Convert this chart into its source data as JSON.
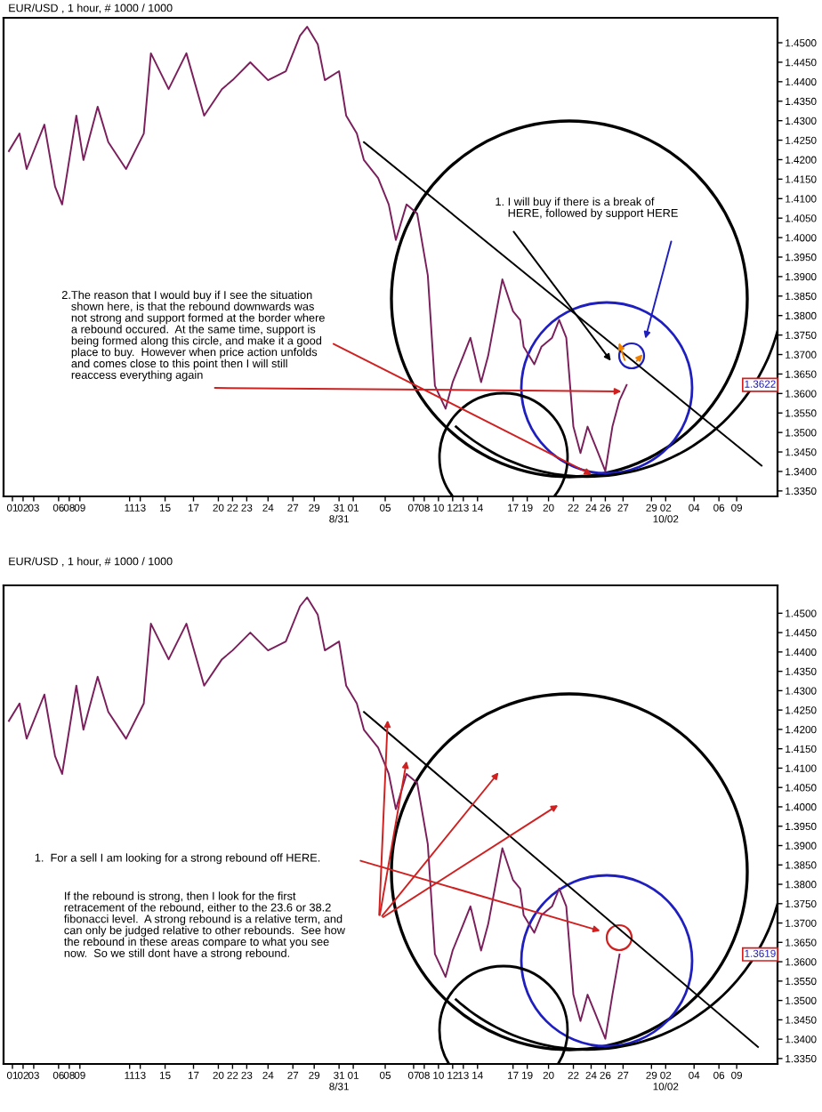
{
  "chart_data": [
    {
      "type": "line",
      "title": "EUR/USD , 1 hour, # 1000 / 1000",
      "ylim": [
        1.3336,
        1.4564
      ],
      "categories": [
        null,
        null,
        "01",
        null,
        null,
        "02",
        null,
        null,
        "03",
        null,
        null,
        null,
        null,
        null,
        null,
        "06",
        null,
        null,
        "08",
        null,
        null,
        "09",
        null,
        null,
        null,
        null,
        null,
        null,
        null,
        null,
        null,
        null,
        null,
        null,
        null,
        "11",
        null,
        null,
        "13",
        null,
        null,
        null,
        null,
        null,
        null,
        "15",
        null,
        null,
        null,
        null,
        null,
        null,
        null,
        "17",
        null,
        null,
        null,
        null,
        null,
        null,
        "20",
        null,
        null,
        null,
        "22",
        null,
        null,
        null,
        "23",
        null,
        null,
        null,
        null,
        null,
        "24",
        null,
        null,
        null,
        null,
        null,
        null,
        "27",
        null,
        null,
        null,
        null,
        null,
        "29",
        null,
        null,
        null,
        null,
        null,
        null,
        "31\n8/31",
        null,
        null,
        null,
        "01",
        null,
        null,
        null,
        null,
        null,
        null,
        null,
        null,
        "05",
        null,
        null,
        null,
        null,
        null,
        null,
        null,
        "07",
        null,
        null,
        "08",
        null,
        null,
        null,
        "10",
        null,
        null,
        null,
        "12",
        null,
        null,
        "13",
        null,
        null,
        null,
        "14",
        null,
        null,
        null,
        null,
        null,
        null,
        null,
        null,
        null,
        "17",
        null,
        null,
        null,
        "19",
        null,
        null,
        null,
        null,
        null,
        "20",
        null,
        null,
        null,
        null,
        null,
        null,
        "22",
        null,
        null,
        null,
        null,
        "24",
        null,
        null,
        null,
        "26",
        null,
        null,
        null,
        null,
        "27",
        null,
        null,
        null,
        null,
        null,
        null,
        null,
        "29",
        null,
        null,
        null,
        "02\n10/02",
        null,
        null,
        null,
        null,
        null,
        null,
        null,
        "04",
        null,
        null,
        null,
        null,
        null,
        null,
        "06",
        null,
        null,
        null,
        null,
        "09",
        null,
        null,
        null,
        null,
        null,
        null,
        null,
        null,
        null,
        null,
        null
      ],
      "yticks": [
        {
          "value": 1.335,
          "label": "1.3350"
        },
        {
          "value": 1.34,
          "label": "1.3400"
        },
        {
          "value": 1.345,
          "label": "1.3450"
        },
        {
          "value": 1.35,
          "label": "1.3500"
        },
        {
          "value": 1.355,
          "label": "1.3550"
        },
        {
          "value": 1.36,
          "label": "1.3600"
        },
        {
          "value": 1.365,
          "label": "1.3650"
        },
        {
          "value": 1.37,
          "label": "1.3700"
        },
        {
          "value": 1.375,
          "label": "1.3750"
        },
        {
          "value": 1.38,
          "label": "1.3800"
        },
        {
          "value": 1.385,
          "label": "1.3850"
        },
        {
          "value": 1.39,
          "label": "1.3900"
        },
        {
          "value": 1.395,
          "label": "1.3950"
        },
        {
          "value": 1.4,
          "label": "1.4000"
        },
        {
          "value": 1.405,
          "label": "1.4050"
        },
        {
          "value": 1.41,
          "label": "1.4100"
        },
        {
          "value": 1.415,
          "label": "1.4150"
        },
        {
          "value": 1.42,
          "label": "1.4200"
        },
        {
          "value": 1.425,
          "label": "1.4250"
        },
        {
          "value": 1.43,
          "label": "1.4300"
        },
        {
          "value": 1.435,
          "label": "1.4350"
        },
        {
          "value": 1.44,
          "label": "1.4400"
        },
        {
          "value": 1.445,
          "label": "1.4450"
        },
        {
          "value": 1.45,
          "label": "1.4500"
        }
      ],
      "series": [
        {
          "color": "#7a1f5c",
          "values": [
            null,
            1.4222,
            null,
            null,
            1.4267,
            null,
            1.4176,
            null,
            null,
            null,
            null,
            1.429,
            null,
            null,
            1.4131,
            null,
            1.4085,
            null,
            null,
            null,
            1.4313,
            null,
            1.4199,
            null,
            null,
            null,
            1.4336,
            null,
            null,
            1.4245,
            null,
            null,
            null,
            null,
            1.4176,
            null,
            null,
            null,
            null,
            1.4267,
            null,
            1.4473,
            null,
            null,
            null,
            null,
            1.4381,
            null,
            null,
            null,
            null,
            1.4473,
            null,
            null,
            null,
            null,
            1.4313,
            null,
            null,
            null,
            null,
            1.4381,
            null,
            null,
            1.4404,
            null,
            null,
            null,
            null,
            1.445,
            null,
            null,
            null,
            null,
            1.4404,
            null,
            null,
            null,
            null,
            1.4427,
            null,
            null,
            null,
            1.4518,
            null,
            1.4541,
            null,
            null,
            1.4496,
            null,
            1.4404,
            null,
            null,
            null,
            1.4427,
            null,
            1.4313,
            null,
            null,
            1.4267,
            null,
            1.4199,
            null,
            null,
            null,
            1.4153,
            null,
            null,
            1.4085,
            null,
            1.3994,
            null,
            null,
            1.4085,
            null,
            null,
            1.4062,
            null,
            null,
            1.3903,
            null,
            1.362,
            null,
            null,
            1.3561,
            null,
            1.3629,
            null,
            null,
            1.3697,
            null,
            1.3743,
            null,
            null,
            1.3629,
            null,
            1.3697,
            null,
            null,
            null,
            1.3893,
            null,
            null,
            1.3811,
            null,
            1.3789,
            1.372,
            null,
            null,
            1.3675,
            null,
            1.372,
            null,
            null,
            1.3743,
            null,
            1.3789,
            null,
            1.3743,
            null,
            1.3515,
            null,
            1.3447,
            null,
            1.3515,
            null,
            1.347,
            null,
            null,
            1.3401,
            null,
            1.3515,
            null,
            1.3583,
            null,
            1.3622,
            null,
            null,
            null,
            null,
            null,
            null,
            null,
            null,
            null,
            null,
            null,
            null,
            null,
            null,
            null,
            null,
            null,
            null,
            null,
            null,
            null,
            null,
            null,
            null,
            null,
            null,
            null,
            null,
            null,
            null,
            null,
            null,
            null,
            null,
            null,
            null,
            null,
            null,
            null,
            null,
            null,
            null
          ]
        },
        {
          "color": "#000000",
          "values": [
            null,
            null,
            null,
            null,
            null,
            null,
            null,
            null,
            null,
            null,
            null,
            null,
            null,
            null,
            null,
            null,
            null,
            null,
            null,
            null,
            null,
            null,
            null,
            null,
            null,
            null,
            null,
            null,
            null,
            null,
            null,
            null,
            null,
            null,
            null,
            null,
            null,
            null,
            null,
            null,
            null,
            null,
            null,
            null,
            null,
            null,
            null,
            null,
            null,
            null,
            null,
            null,
            null,
            null,
            null,
            null,
            null,
            null,
            null,
            null,
            null,
            null,
            null,
            null,
            null,
            null,
            null,
            null,
            null,
            null,
            null,
            null,
            null,
            null,
            null,
            null,
            null,
            null,
            null,
            null,
            null,
            null,
            null,
            null,
            null,
            null,
            null,
            null,
            null,
            null,
            null,
            null,
            null,
            null,
            null,
            null,
            null,
            null,
            null,
            null,
            null,
            1.4245,
            null,
            null,
            null,
            null,
            null,
            null,
            null,
            null,
            null,
            null,
            null,
            null,
            null,
            null,
            null,
            null,
            null,
            null,
            null,
            null,
            null,
            null,
            null,
            null,
            null,
            null,
            null,
            null,
            null,
            null,
            null,
            null,
            null,
            null,
            null,
            null,
            null,
            null,
            null,
            null,
            null,
            null,
            null,
            null,
            null,
            null,
            null,
            null,
            null,
            null,
            null,
            null,
            null,
            null,
            null,
            null,
            null,
            null,
            null,
            null,
            null,
            null,
            null,
            null,
            null,
            null,
            null,
            null,
            null,
            null,
            null,
            null,
            null,
            null,
            null,
            null,
            null,
            null,
            null,
            null,
            null,
            null,
            null,
            null,
            null,
            null,
            null,
            null,
            null,
            null,
            null,
            null,
            null,
            null,
            null,
            null,
            null,
            null,
            null,
            null,
            null,
            null,
            null,
            null,
            null,
            null,
            null,
            null,
            null,
            null,
            null,
            1.3415,
            null,
            null,
            null,
            null
          ]
        }
      ],
      "annotations": [
        "1. I will buy if there is a break of\n    HERE, followed by support HERE",
        "2.The reason that I would buy if I see the situation\n   shown here, is that the rebound downwards was\n   not strong and support formed at the border where\n   a rebound occured.  At the same time, support is\n   being formed along this circle, and make it a good\n   place to buy.  However when price action unfolds\n   and comes close to this point then I will still\n   reaccess everything again",
        "1.3622"
      ]
    },
    {
      "type": "line",
      "title": "EUR/USD , 1 hour, # 1000 / 1000",
      "ylim": [
        1.3336,
        1.4572
      ],
      "categories": [
        null,
        null,
        "01",
        null,
        null,
        "02",
        null,
        null,
        "03",
        null,
        null,
        null,
        null,
        null,
        null,
        "06",
        null,
        null,
        "08",
        null,
        null,
        "09",
        null,
        null,
        null,
        null,
        null,
        null,
        null,
        null,
        null,
        null,
        null,
        null,
        null,
        "11",
        null,
        null,
        "13",
        null,
        null,
        null,
        null,
        null,
        null,
        "15",
        null,
        null,
        null,
        null,
        null,
        null,
        null,
        "17",
        null,
        null,
        null,
        null,
        null,
        null,
        "20",
        null,
        null,
        null,
        "22",
        null,
        null,
        null,
        "23",
        null,
        null,
        null,
        null,
        null,
        "24",
        null,
        null,
        null,
        null,
        null,
        null,
        "27",
        null,
        null,
        null,
        null,
        null,
        "29",
        null,
        null,
        null,
        null,
        null,
        null,
        "31\n8/31",
        null,
        null,
        null,
        "01",
        null,
        null,
        null,
        null,
        null,
        null,
        null,
        null,
        "05",
        null,
        null,
        null,
        null,
        null,
        null,
        null,
        "07",
        null,
        null,
        "08",
        null,
        null,
        null,
        "10",
        null,
        null,
        null,
        "12",
        null,
        null,
        "13",
        null,
        null,
        null,
        "14",
        null,
        null,
        null,
        null,
        null,
        null,
        null,
        null,
        null,
        "17",
        null,
        null,
        null,
        "19",
        null,
        null,
        null,
        null,
        null,
        "20",
        null,
        null,
        null,
        null,
        null,
        null,
        "22",
        null,
        null,
        null,
        null,
        "24",
        null,
        null,
        null,
        "26",
        null,
        null,
        null,
        null,
        "27",
        null,
        null,
        null,
        null,
        null,
        null,
        null,
        "29",
        null,
        null,
        null,
        "02\n10/02",
        null,
        null,
        null,
        null,
        null,
        null,
        null,
        "04",
        null,
        null,
        null,
        null,
        null,
        null,
        "06",
        null,
        null,
        null,
        null,
        "09",
        null,
        null,
        null,
        null,
        null,
        null,
        null,
        null,
        null,
        null,
        null
      ],
      "yticks": [
        {
          "value": 1.335,
          "label": "1.3350"
        },
        {
          "value": 1.34,
          "label": "1.3400"
        },
        {
          "value": 1.345,
          "label": "1.3450"
        },
        {
          "value": 1.35,
          "label": "1.3500"
        },
        {
          "value": 1.355,
          "label": "1.3550"
        },
        {
          "value": 1.36,
          "label": "1.3600"
        },
        {
          "value": 1.365,
          "label": "1.3650"
        },
        {
          "value": 1.37,
          "label": "1.3700"
        },
        {
          "value": 1.375,
          "label": "1.3750"
        },
        {
          "value": 1.38,
          "label": "1.3800"
        },
        {
          "value": 1.385,
          "label": "1.3850"
        },
        {
          "value": 1.39,
          "label": "1.3900"
        },
        {
          "value": 1.395,
          "label": "1.3950"
        },
        {
          "value": 1.4,
          "label": "1.4000"
        },
        {
          "value": 1.405,
          "label": "1.4050"
        },
        {
          "value": 1.41,
          "label": "1.4100"
        },
        {
          "value": 1.415,
          "label": "1.4150"
        },
        {
          "value": 1.42,
          "label": "1.4200"
        },
        {
          "value": 1.425,
          "label": "1.4250"
        },
        {
          "value": 1.43,
          "label": "1.4300"
        },
        {
          "value": 1.435,
          "label": "1.4350"
        },
        {
          "value": 1.44,
          "label": "1.4400"
        },
        {
          "value": 1.445,
          "label": "1.4450"
        },
        {
          "value": 1.45,
          "label": "1.4500"
        }
      ],
      "series": [
        {
          "color": "#7a1f5c",
          "values": [
            null,
            1.4222,
            null,
            null,
            1.4267,
            null,
            1.4176,
            null,
            null,
            null,
            null,
            1.429,
            null,
            null,
            1.4131,
            null,
            1.4085,
            null,
            null,
            null,
            1.4313,
            null,
            1.4199,
            null,
            null,
            null,
            1.4336,
            null,
            null,
            1.4245,
            null,
            null,
            null,
            null,
            1.4176,
            null,
            null,
            null,
            null,
            1.4267,
            null,
            1.4473,
            null,
            null,
            null,
            null,
            1.4381,
            null,
            null,
            null,
            null,
            1.4473,
            null,
            null,
            null,
            null,
            1.4313,
            null,
            null,
            null,
            null,
            1.4381,
            null,
            null,
            1.4404,
            null,
            null,
            null,
            null,
            1.445,
            null,
            null,
            null,
            null,
            1.4404,
            null,
            null,
            null,
            null,
            1.4427,
            null,
            null,
            null,
            1.4518,
            null,
            1.4541,
            null,
            null,
            1.4496,
            null,
            1.4404,
            null,
            null,
            null,
            1.4427,
            null,
            1.4313,
            null,
            null,
            1.4267,
            null,
            1.4199,
            null,
            null,
            null,
            1.4153,
            null,
            null,
            1.4085,
            null,
            1.3994,
            null,
            null,
            1.4085,
            null,
            null,
            1.4062,
            null,
            null,
            1.3903,
            null,
            1.362,
            null,
            null,
            1.3561,
            null,
            1.3629,
            null,
            null,
            1.3697,
            null,
            1.3743,
            null,
            null,
            1.3629,
            null,
            1.3697,
            null,
            null,
            null,
            1.3893,
            null,
            null,
            1.3811,
            null,
            1.3789,
            1.372,
            null,
            null,
            1.3675,
            null,
            1.372,
            null,
            null,
            1.3743,
            null,
            1.3789,
            null,
            1.3743,
            null,
            1.3515,
            null,
            1.3447,
            null,
            1.3515,
            null,
            1.347,
            null,
            null,
            1.3401,
            null,
            1.3515,
            null,
            1.3619,
            null,
            null,
            null,
            null,
            null,
            null,
            null,
            null,
            null,
            null,
            null,
            null,
            null,
            null,
            null,
            null,
            null,
            null,
            null,
            null,
            null,
            null,
            null,
            null,
            null,
            null,
            null,
            null,
            null,
            null,
            null,
            null,
            null,
            null,
            null,
            null,
            null,
            null,
            null,
            null,
            null,
            null,
            null,
            null
          ]
        },
        {
          "color": "#000000",
          "values": [
            null,
            null,
            null,
            null,
            null,
            null,
            null,
            null,
            null,
            null,
            null,
            null,
            null,
            null,
            null,
            null,
            null,
            null,
            null,
            null,
            null,
            null,
            null,
            null,
            null,
            null,
            null,
            null,
            null,
            null,
            null,
            null,
            null,
            null,
            null,
            null,
            null,
            null,
            null,
            null,
            null,
            null,
            null,
            null,
            null,
            null,
            null,
            null,
            null,
            null,
            null,
            null,
            null,
            null,
            null,
            null,
            null,
            null,
            null,
            null,
            null,
            null,
            null,
            null,
            null,
            null,
            null,
            null,
            null,
            null,
            null,
            null,
            null,
            null,
            null,
            null,
            null,
            null,
            null,
            null,
            null,
            null,
            null,
            null,
            null,
            null,
            null,
            null,
            null,
            null,
            null,
            null,
            null,
            null,
            null,
            null,
            null,
            null,
            null,
            null,
            null,
            1.4245,
            null,
            null,
            null,
            null,
            null,
            null,
            null,
            null,
            null,
            null,
            null,
            null,
            null,
            null,
            null,
            null,
            null,
            null,
            null,
            null,
            null,
            null,
            null,
            null,
            null,
            null,
            null,
            null,
            null,
            null,
            null,
            null,
            null,
            null,
            null,
            null,
            null,
            null,
            null,
            null,
            null,
            null,
            null,
            null,
            null,
            null,
            null,
            null,
            null,
            null,
            null,
            null,
            null,
            null,
            null,
            null,
            null,
            null,
            null,
            null,
            null,
            null,
            null,
            null,
            null,
            null,
            null,
            null,
            null,
            null,
            null,
            null,
            null,
            null,
            null,
            null,
            null,
            null,
            null,
            null,
            null,
            null,
            null,
            null,
            null,
            null,
            null,
            null,
            null,
            null,
            null,
            null,
            null,
            null,
            null,
            null,
            null,
            null,
            null,
            null,
            null,
            null,
            null,
            null,
            null,
            null,
            null,
            null,
            null,
            null,
            1.338,
            null,
            null,
            null,
            null,
            null
          ]
        }
      ],
      "annotations": [
        "1.  For a sell I am looking for a strong rebound off HERE.",
        "If the rebound is strong, then I look for the first\nretracement of the rebound, either to the 23.6 or 38.2\nfibonacci level.  A strong rebound is a relative term, and\ncan only be judged relative to other rebounds.  See how\nthe rebound in these areas compare to what you see\nnow.  So we still dont have a strong rebound.",
        "1.3619"
      ]
    }
  ]
}
